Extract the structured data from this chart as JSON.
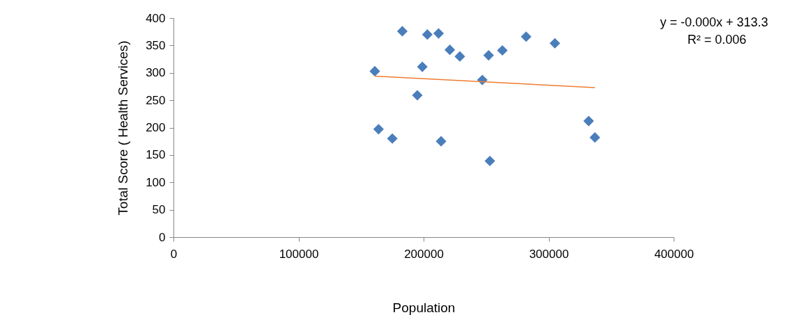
{
  "chart_data": {
    "type": "scatter",
    "xlabel": "Population",
    "ylabel": "Total Score ( Health Services)",
    "xlim": [
      0,
      400000
    ],
    "ylim": [
      0,
      400
    ],
    "xticks": [
      0,
      100000,
      200000,
      300000,
      400000
    ],
    "yticks": [
      0,
      50,
      100,
      150,
      200,
      250,
      300,
      350,
      400
    ],
    "annotations": [
      "y = -0.000x + 313.3",
      "R² = 0.006"
    ],
    "series": [
      {
        "type": "scatter",
        "marker": "diamond",
        "color": "#4a7ebb",
        "x": [
          161000,
          183000,
          203000,
          212000,
          221000,
          229000,
          199000,
          195000,
          247000,
          252000,
          263000,
          282000,
          305000,
          164000,
          175000,
          214000,
          253000,
          332000,
          337000
        ],
        "values": [
          303,
          376,
          370,
          372,
          342,
          330,
          311,
          259,
          287,
          332,
          341,
          366,
          354,
          197,
          180,
          175,
          139,
          212,
          182
        ]
      },
      {
        "type": "line",
        "color": "#ed7d31",
        "x": [
          161000,
          337000
        ],
        "values": [
          294,
          273
        ]
      }
    ]
  }
}
